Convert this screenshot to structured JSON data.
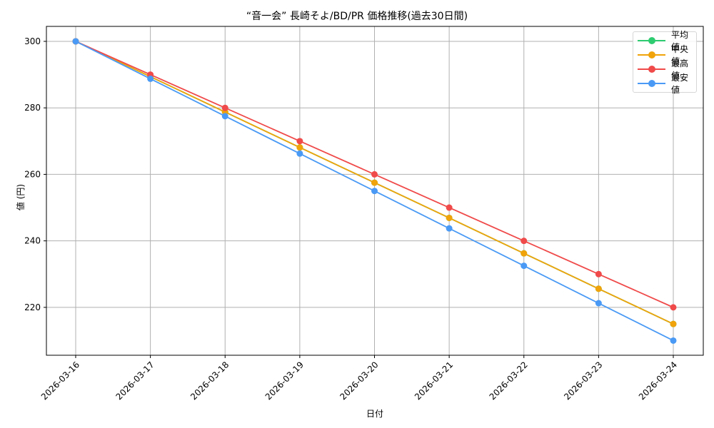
{
  "chart_data": {
    "type": "line",
    "title": "“音一会” 長崎そよ/BD/PR 価格推移(過去30日間)",
    "xlabel": "日付",
    "ylabel": "値 (円)",
    "categories": [
      "2026-03-16",
      "2026-03-17",
      "2026-03-18",
      "2026-03-19",
      "2026-03-20",
      "2026-03-21",
      "2026-03-22",
      "2026-03-23",
      "2026-03-24"
    ],
    "series": [
      {
        "name": "平均値",
        "color": "#2ecc71",
        "values": [
          300,
          289.4,
          278.75,
          268.1,
          257.5,
          246.9,
          236.25,
          225.6,
          215
        ]
      },
      {
        "name": "中央値",
        "color": "#f0a30a",
        "values": [
          300,
          289.4,
          278.75,
          268.1,
          257.5,
          246.9,
          236.25,
          225.6,
          215
        ]
      },
      {
        "name": "最高値",
        "color": "#f04a4a",
        "values": [
          300,
          290,
          280,
          270,
          260,
          250,
          240,
          230,
          220
        ]
      },
      {
        "name": "最安値",
        "color": "#4a9af5",
        "values": [
          300,
          288.75,
          277.5,
          266.25,
          255,
          243.75,
          232.5,
          221.25,
          210
        ]
      }
    ],
    "yticks": [
      220,
      240,
      260,
      280,
      300
    ],
    "ylim": [
      205.6,
      304.5
    ],
    "grid": true,
    "legend_position": "upper right",
    "xtick_rotation": 45
  }
}
